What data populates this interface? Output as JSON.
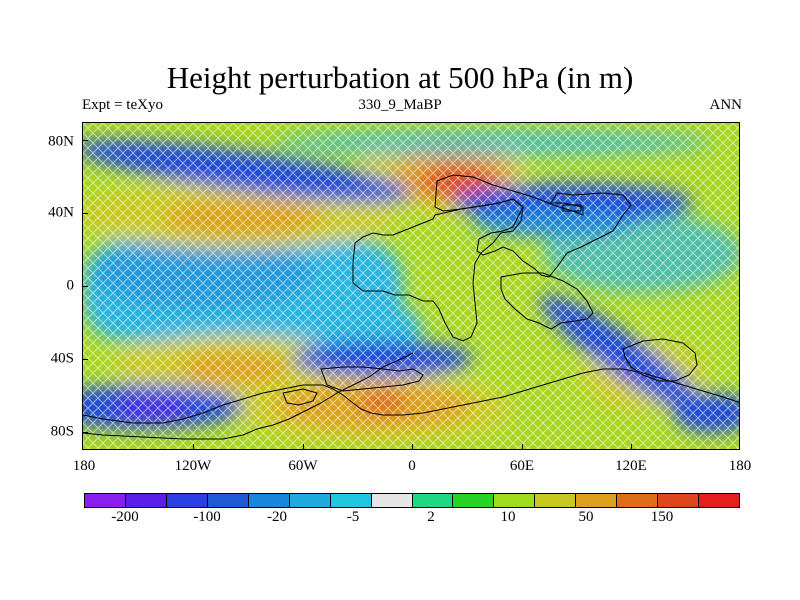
{
  "title": "Height perturbation at 500 hPa (in m)",
  "left_string": "Expt = teXyo",
  "center_string": "330_9_MaBP",
  "right_string": "ANN",
  "lat_labels": [
    "80N",
    "40N",
    "0",
    "40S",
    "80S"
  ],
  "lon_labels": [
    "180",
    "120W",
    "60W",
    "0",
    "60E",
    "120E",
    "180"
  ],
  "colorbar": {
    "colors": [
      "#8b1ef0",
      "#5a1fe8",
      "#2a3ee6",
      "#1f5ad8",
      "#1e86d8",
      "#20aadc",
      "#1ec8e0",
      "#e6e6e6",
      "#1ed882",
      "#28d228",
      "#a0dc1e",
      "#c8c81e",
      "#dca01e",
      "#dc6e1e",
      "#e0461e",
      "#e61e1e"
    ],
    "labels": [
      "-200",
      "-100",
      "-20",
      "-5",
      "2",
      "10",
      "50",
      "150"
    ]
  },
  "map": {
    "lat_range": [
      -90,
      90
    ],
    "lon_range": [
      -180,
      180
    ],
    "field_colors": {
      "strong_negative": "#1f4ad8",
      "negative": "#1e86d8",
      "weak_negative": "#28b4e0",
      "weak_positive": "#a0dc1e",
      "positive": "#c8c81e",
      "strong_positive": "#dca01e",
      "max_positive": "#e0461e"
    }
  }
}
